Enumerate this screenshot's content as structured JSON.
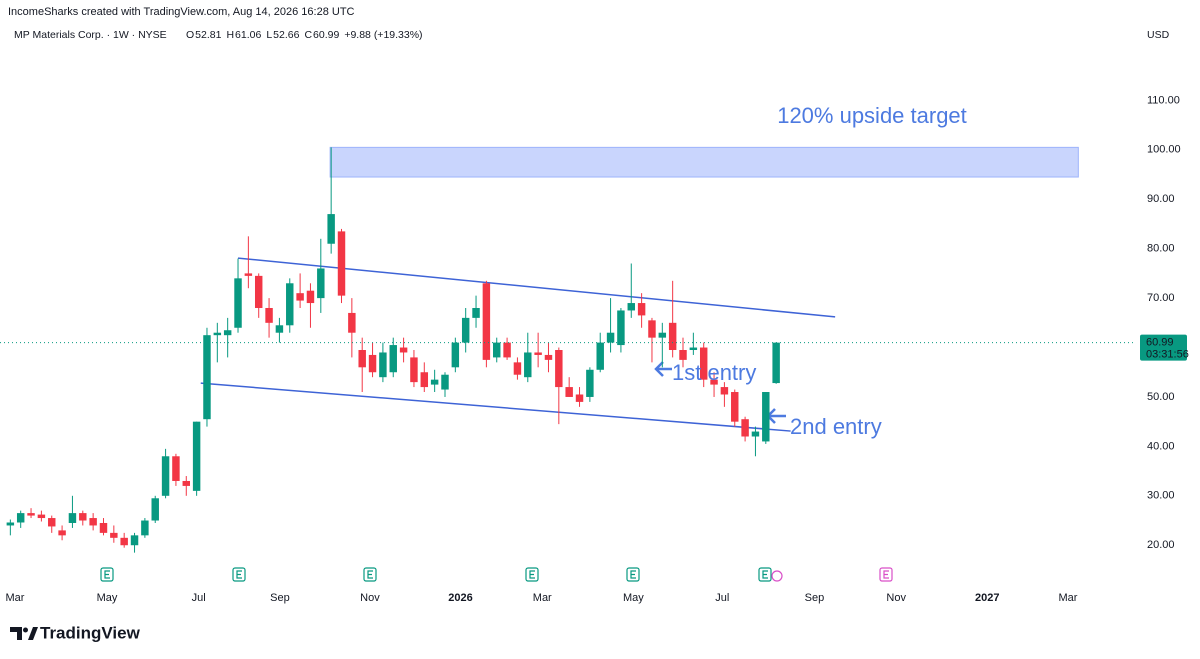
{
  "header": {
    "attribution": "IncomeSharks created with TradingView.com, Aug 14, 2026 16:28 UTC",
    "symbol": "MP Materials Corp. · 1W · NYSE",
    "ohlc_letters": [
      "O",
      "H",
      "L",
      "C"
    ],
    "change": "+9.88 (+19.33%)",
    "currency": "USD"
  },
  "footer": {
    "logo": "TradingView"
  },
  "chart_data": {
    "type": "candlestick",
    "categories": [
      null,
      null,
      null,
      null,
      null,
      null,
      null,
      null,
      null,
      null,
      null,
      null,
      null,
      null,
      null,
      null,
      null,
      null,
      null,
      null,
      null,
      null,
      null,
      null,
      null,
      null,
      null,
      null,
      null,
      null,
      null,
      null,
      null,
      null,
      null,
      null,
      null,
      null,
      null,
      null,
      null,
      null,
      null,
      null,
      null,
      null,
      null,
      null,
      null,
      null,
      null,
      null,
      null,
      null,
      null,
      null,
      null,
      null,
      null,
      null,
      null,
      null,
      null,
      null,
      null,
      null,
      null,
      null,
      null,
      null,
      null,
      null,
      null,
      null,
      null
    ],
    "series": [
      {
        "name": "MP Materials Corp.",
        "open": [
          24,
          24.6,
          26.5,
          26.2,
          25.5,
          23,
          24.5,
          26.5,
          25.5,
          24.5,
          22.5,
          21.5,
          20,
          22,
          25,
          30,
          38,
          33,
          31,
          45.5,
          62.5,
          62.5,
          64,
          75,
          74.5,
          68,
          63,
          64.5,
          71,
          71.5,
          70,
          81,
          83.5,
          67,
          59.5,
          58.5,
          54,
          55,
          60,
          58,
          55,
          52.5,
          51.5,
          56,
          61,
          66,
          73,
          58,
          61,
          57,
          54,
          59,
          58.5,
          59.5,
          52,
          50.5,
          50,
          55.5,
          61,
          60.5,
          67.5,
          69,
          65.5,
          62,
          65,
          59.5,
          59.5,
          60,
          53.5,
          52,
          51,
          45.5,
          42,
          41,
          52.81
        ],
        "high": [
          25.2,
          27,
          27.5,
          27,
          26,
          24,
          30,
          27,
          26.5,
          25.5,
          24,
          22.5,
          22.5,
          25.5,
          30,
          39.5,
          38.5,
          34,
          45,
          64,
          65,
          66,
          78,
          82.5,
          75,
          70,
          66,
          74,
          75,
          73,
          82,
          100.5,
          84,
          70,
          62,
          61,
          61,
          62,
          62,
          59.5,
          57,
          55.5,
          55,
          62,
          68,
          70.5,
          73.5,
          62,
          62,
          58,
          63,
          63,
          61,
          60,
          54,
          52,
          56,
          63,
          70,
          68,
          77,
          71,
          66,
          65,
          73.5,
          62,
          63,
          61,
          55,
          53,
          51.5,
          46,
          44,
          51,
          61.06
        ],
        "low": [
          22,
          23.5,
          25.5,
          24.8,
          22.5,
          21,
          23.5,
          24,
          23,
          22,
          20.5,
          19.5,
          18.5,
          21.5,
          24.5,
          29.5,
          32,
          30,
          30,
          44,
          57,
          58,
          63,
          72,
          66,
          62,
          61,
          63,
          68,
          64,
          67,
          79,
          69,
          58,
          51,
          54,
          53,
          54,
          57,
          52,
          51,
          51,
          50,
          55,
          59,
          64,
          56,
          57,
          57.5,
          53.5,
          53,
          56,
          55,
          44.5,
          50,
          48,
          49,
          55,
          59,
          59,
          66,
          64,
          57,
          56,
          58,
          56,
          58.5,
          52,
          50,
          48,
          44,
          41,
          38,
          40.5,
          52.66
        ],
        "close": [
          24.6,
          26.5,
          26,
          25.5,
          23.8,
          22,
          26.5,
          25,
          24,
          22.5,
          21.5,
          20,
          22,
          25,
          29.5,
          38,
          33,
          32,
          45,
          62.5,
          63,
          63.5,
          74,
          74.5,
          68,
          65,
          64.5,
          73,
          69.5,
          69,
          76,
          87,
          70.5,
          63,
          56,
          55,
          59,
          60.5,
          59,
          53,
          52,
          53.5,
          54.5,
          61,
          66,
          68,
          57.5,
          61,
          58,
          54.5,
          59,
          58.5,
          57.5,
          52,
          50,
          49,
          55.5,
          61,
          63,
          67.5,
          69,
          66.5,
          62,
          63,
          59.5,
          57.5,
          60,
          53.5,
          52.5,
          50.5,
          45,
          42,
          43,
          51,
          60.99
        ],
        "up_color": "#089981",
        "down_color": "#f23645"
      }
    ],
    "ylim": [
      16,
      120.2
    ],
    "yticks": [
      {
        "value": 20,
        "label": "20.00"
      },
      {
        "value": 30,
        "label": "30.00"
      },
      {
        "value": 40,
        "label": "40.00"
      },
      {
        "value": 50,
        "label": "50.00"
      },
      {
        "value": 60,
        "label": "60.00"
      },
      {
        "value": 70,
        "label": "70.00"
      },
      {
        "value": 80,
        "label": "80.00"
      },
      {
        "value": 90,
        "label": "90.00"
      },
      {
        "value": 100,
        "label": "100.00"
      },
      {
        "value": 110,
        "label": "110.00"
      }
    ],
    "xlim": [
      -1,
      108
    ],
    "xticks": [
      {
        "value": 0.45,
        "label": "Mar"
      },
      {
        "value": 9.34,
        "label": "May"
      },
      {
        "value": 18.2,
        "label": "Jul"
      },
      {
        "value": 26.05,
        "label": "Sep"
      },
      {
        "value": 34.75,
        "label": "Nov"
      },
      {
        "value": 43.5,
        "label": "2026"
      },
      {
        "value": 51.4,
        "label": "Mar"
      },
      {
        "value": 60.2,
        "label": "May"
      },
      {
        "value": 68.8,
        "label": "Jul"
      },
      {
        "value": 77.7,
        "label": "Sep"
      },
      {
        "value": 85.6,
        "label": "Nov"
      },
      {
        "value": 94.4,
        "label": "2027"
      },
      {
        "value": 102.2,
        "label": "Mar"
      }
    ],
    "grid": false,
    "countdown": "03:31:56",
    "target_zone": {
      "x": [
        30.9,
        103.2
      ],
      "y": [
        94.5,
        100.5
      ],
      "color": "#9db3fb"
    },
    "channel": [
      {
        "x": [
          22,
          79.7
        ],
        "y": [
          78.1,
          66.2
        ]
      },
      {
        "x": [
          18.4,
          75.4
        ],
        "y": [
          52.8,
          43.1
        ]
      }
    ],
    "channel_color": "#3e63d6",
    "annotations": [
      "120% upside target",
      "1st entry",
      "2nd entry"
    ]
  }
}
